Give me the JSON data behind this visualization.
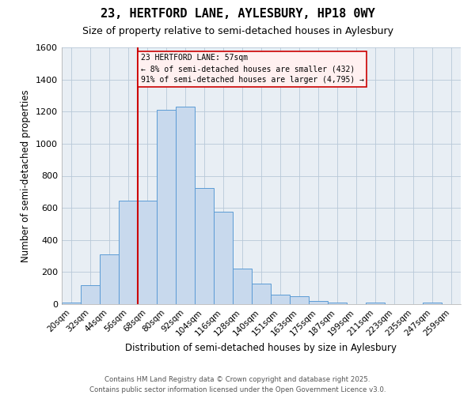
{
  "title1": "23, HERTFORD LANE, AYLESBURY, HP18 0WY",
  "title2": "Size of property relative to semi-detached houses in Aylesbury",
  "xlabel": "Distribution of semi-detached houses by size in Aylesbury",
  "ylabel": "Number of semi-detached properties",
  "categories": [
    "20sqm",
    "32sqm",
    "44sqm",
    "56sqm",
    "68sqm",
    "80sqm",
    "92sqm",
    "104sqm",
    "116sqm",
    "128sqm",
    "140sqm",
    "151sqm",
    "163sqm",
    "175sqm",
    "187sqm",
    "199sqm",
    "211sqm",
    "223sqm",
    "235sqm",
    "247sqm",
    "259sqm"
  ],
  "values": [
    10,
    120,
    310,
    645,
    645,
    1210,
    1230,
    725,
    575,
    220,
    130,
    60,
    47,
    22,
    10,
    0,
    10,
    0,
    0,
    10,
    0
  ],
  "bar_color": "#c8d9ed",
  "bar_edge_color": "#5b9bd5",
  "grid_color": "#b8c8d8",
  "background_color": "#e8eef4",
  "annotation_title": "23 HERTFORD LANE: 57sqm",
  "annotation_line1": "← 8% of semi-detached houses are smaller (432)",
  "annotation_line2": "91% of semi-detached houses are larger (4,795) →",
  "vline_color": "#cc0000",
  "annotation_box_edge": "#cc0000",
  "annotation_box_face": "#fff0f0",
  "ylim": [
    0,
    1600
  ],
  "yticks": [
    0,
    200,
    400,
    600,
    800,
    1000,
    1200,
    1400,
    1600
  ],
  "vline_bin": 3,
  "footer1": "Contains HM Land Registry data © Crown copyright and database right 2025.",
  "footer2": "Contains public sector information licensed under the Open Government Licence v3.0."
}
